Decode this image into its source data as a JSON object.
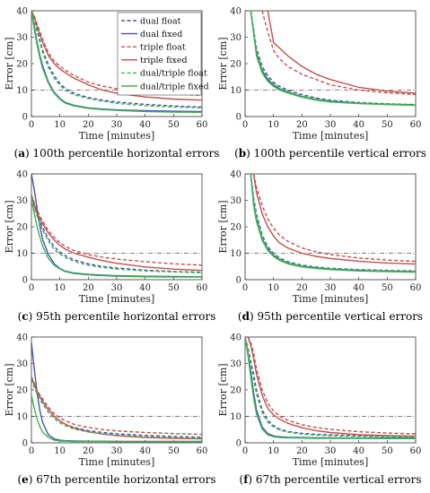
{
  "figure": {
    "legend_placement": "top-right inside panel a",
    "styles": {
      "dual float": {
        "color": "#4a4fb8",
        "dash": true
      },
      "dual fixed": {
        "color": "#4a4fb8",
        "dash": false
      },
      "triple float": {
        "color": "#c0504d",
        "dash": true
      },
      "triple fixed": {
        "color": "#c0504d",
        "dash": false
      },
      "dual/triple float": {
        "color": "#3cb44b",
        "dash": true
      },
      "dual/triple fixed": {
        "color": "#3cb44b",
        "dash": false
      }
    },
    "reference_line_color": "#555555"
  },
  "chart_data": [
    {
      "type": "line",
      "panel_letter": "a",
      "caption_text": "100th percentile horizontal errors",
      "xlabel": "Time [minutes]",
      "ylabel": "Error [cm]",
      "xlim": [
        0,
        60
      ],
      "ylim": [
        0,
        40
      ],
      "xticks": [
        0,
        10,
        20,
        30,
        40,
        50,
        60
      ],
      "yticks": [
        0,
        10,
        20,
        30,
        40
      ],
      "reference_line": 10,
      "x": [
        0,
        1,
        2,
        3,
        4,
        6,
        8,
        10,
        12,
        15,
        20,
        25,
        30,
        40,
        50,
        60
      ],
      "series": [
        {
          "name": "dual float",
          "values": [
            40,
            37,
            33,
            29,
            25,
            19.5,
            15.5,
            12.5,
            10.5,
            8.8,
            7.2,
            6.2,
            5.5,
            4.6,
            4.0,
            3.6
          ]
        },
        {
          "name": "dual fixed",
          "values": [
            40,
            34,
            28,
            23,
            19,
            13,
            9.2,
            6.8,
            5.3,
            4.2,
            3.3,
            2.8,
            2.5,
            2.2,
            2.0,
            1.9
          ]
        },
        {
          "name": "triple float",
          "values": [
            40,
            38,
            35,
            32,
            29,
            24,
            21,
            19,
            17.5,
            15.5,
            13,
            11.5,
            10.5,
            9.3,
            8.5,
            8.0
          ]
        },
        {
          "name": "triple fixed",
          "values": [
            40,
            37.5,
            34,
            31,
            28,
            23,
            20,
            18,
            16.5,
            14.5,
            12,
            10,
            8.8,
            7.4,
            6.6,
            6.2
          ]
        },
        {
          "name": "dual/triple float",
          "values": [
            40,
            36,
            32,
            28,
            24,
            18.5,
            14.5,
            11.8,
            9.8,
            8.2,
            6.8,
            5.8,
            5.0,
            4.1,
            3.6,
            3.3
          ]
        },
        {
          "name": "dual/triple fixed",
          "values": [
            40,
            33,
            27,
            22,
            18,
            12.5,
            8.8,
            6.5,
            5.0,
            4.0,
            3.1,
            2.6,
            2.3,
            1.9,
            1.7,
            1.6
          ]
        }
      ]
    },
    {
      "type": "line",
      "panel_letter": "b",
      "caption_text": "100th percentile vertical errors",
      "xlabel": "Time [minutes]",
      "ylabel": "Error [cm]",
      "xlim": [
        0,
        60
      ],
      "ylim": [
        0,
        40
      ],
      "xticks": [
        0,
        10,
        20,
        30,
        40,
        50,
        60
      ],
      "yticks": [
        0,
        10,
        20,
        30,
        40
      ],
      "reference_line": 10,
      "x": [
        0,
        2,
        4,
        6,
        8,
        10,
        12,
        15,
        20,
        25,
        30,
        40,
        50,
        60
      ],
      "series": [
        {
          "name": "dual float",
          "values": [
            null,
            40,
            26,
            19,
            15.5,
            13,
            11.5,
            10,
            8.3,
            7.0,
            6.2,
            5.3,
            4.8,
            4.5
          ]
        },
        {
          "name": "dual fixed",
          "values": [
            null,
            40,
            24,
            17.5,
            14,
            12,
            10.5,
            9.2,
            7.5,
            6.4,
            5.7,
            5.0,
            4.6,
            4.3
          ]
        },
        {
          "name": "triple float",
          "values": [
            null,
            null,
            null,
            40,
            32,
            25,
            22,
            19,
            16,
            14,
            12,
            10,
            9.0,
            8.3
          ]
        },
        {
          "name": "triple fixed",
          "values": [
            null,
            null,
            null,
            null,
            40,
            28,
            26,
            23,
            19,
            16,
            14,
            11,
            9.6,
            8.8
          ]
        },
        {
          "name": "dual/triple float",
          "values": [
            null,
            40,
            25,
            18,
            14.5,
            12.3,
            10.8,
            9.5,
            7.8,
            6.6,
            5.9,
            5.1,
            4.7,
            4.4
          ]
        },
        {
          "name": "dual/triple fixed",
          "values": [
            null,
            40,
            23,
            16.5,
            13.3,
            11.4,
            10.1,
            8.9,
            7.3,
            6.2,
            5.5,
            4.9,
            4.5,
            4.2
          ]
        }
      ]
    },
    {
      "type": "line",
      "panel_letter": "c",
      "caption_text": "95th percentile horizontal errors",
      "xlabel": "Time [minutes]",
      "ylabel": "Error [cm]",
      "xlim": [
        0,
        60
      ],
      "ylim": [
        0,
        40
      ],
      "xticks": [
        0,
        10,
        20,
        30,
        40,
        50,
        60
      ],
      "yticks": [
        0,
        10,
        20,
        30,
        40
      ],
      "reference_line": 10,
      "x": [
        0,
        1,
        2,
        3,
        4,
        6,
        8,
        10,
        12,
        15,
        20,
        25,
        30,
        40,
        50,
        60
      ],
      "series": [
        {
          "name": "dual float",
          "values": [
            32,
            28,
            25,
            22,
            19.5,
            15.5,
            12.5,
            10.5,
            9.0,
            7.5,
            6.0,
            5.0,
            4.4,
            3.6,
            3.1,
            2.8
          ]
        },
        {
          "name": "dual fixed",
          "values": [
            40,
            34,
            27,
            20,
            15,
            9.5,
            6.0,
            4.2,
            3.2,
            2.5,
            2.0,
            1.7,
            1.5,
            1.3,
            1.2,
            1.1
          ]
        },
        {
          "name": "triple float",
          "values": [
            32,
            29,
            26.5,
            24,
            22,
            18.5,
            16,
            14,
            12.5,
            11,
            9.5,
            8.5,
            7.8,
            6.8,
            6.0,
            5.5
          ]
        },
        {
          "name": "triple fixed",
          "values": [
            32,
            28.5,
            25.5,
            23,
            21,
            17.5,
            15,
            13,
            11.5,
            10,
            8.5,
            7.2,
            6.2,
            4.8,
            4.0,
            3.5
          ]
        },
        {
          "name": "dual/triple float",
          "values": [
            31,
            27,
            24,
            21,
            18.5,
            14.5,
            11.5,
            9.7,
            8.3,
            6.9,
            5.5,
            4.6,
            4.0,
            3.3,
            2.9,
            2.6
          ]
        },
        {
          "name": "dual/triple fixed",
          "values": [
            30,
            25,
            20,
            16,
            12.5,
            8.0,
            5.5,
            4.0,
            3.0,
            2.3,
            1.8,
            1.5,
            1.3,
            1.1,
            1.0,
            1.0
          ]
        }
      ]
    },
    {
      "type": "line",
      "panel_letter": "d",
      "caption_text": "95th percentile vertical errors",
      "xlabel": "Time [minutes]",
      "ylabel": "Error [cm]",
      "xlim": [
        0,
        60
      ],
      "ylim": [
        0,
        40
      ],
      "xticks": [
        0,
        10,
        20,
        30,
        40,
        50,
        60
      ],
      "yticks": [
        0,
        10,
        20,
        30,
        40
      ],
      "reference_line": 10,
      "x": [
        0,
        2,
        3,
        4,
        6,
        8,
        10,
        12,
        15,
        20,
        25,
        30,
        40,
        50,
        60
      ],
      "series": [
        {
          "name": "dual float",
          "values": [
            null,
            40,
            31,
            25,
            17,
            12.5,
            10,
            8.3,
            6.8,
            5.5,
            4.8,
            4.3,
            3.8,
            3.5,
            3.3
          ]
        },
        {
          "name": "dual fixed",
          "values": [
            null,
            40,
            29,
            23,
            15.5,
            11.5,
            9.2,
            7.7,
            6.2,
            5.0,
            4.4,
            4.0,
            3.5,
            3.2,
            3.0
          ]
        },
        {
          "name": "triple float",
          "values": [
            null,
            null,
            40,
            35,
            28,
            23,
            19.5,
            17,
            14.5,
            12,
            10.5,
            9.5,
            8.2,
            7.4,
            6.9
          ]
        },
        {
          "name": "triple fixed",
          "values": [
            null,
            null,
            40,
            33,
            25,
            20,
            16.5,
            14,
            12,
            10,
            8.8,
            8.0,
            7.0,
            6.3,
            5.9
          ]
        },
        {
          "name": "dual/triple float",
          "values": [
            null,
            40,
            30,
            24,
            16.5,
            12,
            9.6,
            8.0,
            6.5,
            5.3,
            4.6,
            4.1,
            3.6,
            3.3,
            3.1
          ]
        },
        {
          "name": "dual/triple fixed",
          "values": [
            null,
            40,
            28,
            22,
            15,
            11,
            8.8,
            7.4,
            6.0,
            4.8,
            4.2,
            3.8,
            3.3,
            3.0,
            2.8
          ]
        }
      ]
    },
    {
      "type": "line",
      "panel_letter": "e",
      "caption_text": "67th percentile horizontal errors",
      "xlabel": "Time [minutes]",
      "ylabel": "Error [cm]",
      "xlim": [
        0,
        60
      ],
      "ylim": [
        0,
        40
      ],
      "xticks": [
        0,
        10,
        20,
        30,
        40,
        50,
        60
      ],
      "yticks": [
        0,
        10,
        20,
        30,
        40
      ],
      "reference_line": 10,
      "x": [
        0,
        1,
        2,
        3,
        4,
        6,
        8,
        10,
        12,
        15,
        20,
        25,
        30,
        40,
        50,
        60
      ],
      "series": [
        {
          "name": "dual float",
          "values": [
            25,
            22,
            19.5,
            17.5,
            15.5,
            12.5,
            10,
            8.3,
            7.0,
            5.8,
            4.6,
            3.9,
            3.4,
            2.8,
            2.4,
            2.1
          ]
        },
        {
          "name": "dual fixed",
          "values": [
            38,
            28,
            19,
            12,
            7.5,
            3.0,
            1.5,
            1.0,
            0.8,
            0.7,
            0.6,
            0.6,
            0.5,
            0.5,
            0.5,
            0.5
          ]
        },
        {
          "name": "triple float",
          "values": [
            25,
            22.5,
            20,
            18,
            16.5,
            13.5,
            11,
            9.5,
            8.3,
            7.0,
            5.8,
            5.0,
            4.5,
            3.9,
            3.5,
            3.2
          ]
        },
        {
          "name": "triple fixed",
          "values": [
            25,
            22,
            19.5,
            17.5,
            15.5,
            12.5,
            10,
            8.3,
            7.0,
            5.6,
            4.2,
            3.3,
            2.7,
            2.0,
            1.7,
            1.5
          ]
        },
        {
          "name": "dual/triple float",
          "values": [
            24,
            21,
            18.5,
            16.5,
            14.5,
            11.5,
            9.2,
            7.6,
            6.4,
            5.2,
            4.1,
            3.4,
            2.9,
            2.3,
            2.0,
            1.8
          ]
        },
        {
          "name": "dual/triple fixed",
          "values": [
            18,
            13,
            9,
            6,
            4,
            2.0,
            1.0,
            0.7,
            0.6,
            0.5,
            0.5,
            0.5,
            0.4,
            0.4,
            0.4,
            0.4
          ]
        }
      ]
    },
    {
      "type": "line",
      "panel_letter": "f",
      "caption_text": "67th percentile vertical errors",
      "xlabel": "Time [minutes]",
      "ylabel": "Error [cm]",
      "xlim": [
        0,
        60
      ],
      "ylim": [
        0,
        40
      ],
      "xticks": [
        0,
        10,
        20,
        30,
        40,
        50,
        60
      ],
      "yticks": [
        0,
        10,
        20,
        30,
        40
      ],
      "reference_line": 10,
      "x": [
        0,
        1,
        2,
        3,
        4,
        6,
        8,
        10,
        12,
        15,
        20,
        25,
        30,
        40,
        50,
        60
      ],
      "series": [
        {
          "name": "dual float",
          "values": [
            40,
            36,
            31,
            26,
            20,
            12.5,
            8.5,
            6.5,
            5.3,
            4.3,
            3.6,
            3.2,
            3.0,
            2.7,
            2.5,
            2.4
          ]
        },
        {
          "name": "dual fixed",
          "values": [
            40,
            34,
            27,
            19,
            12.5,
            6.0,
            3.5,
            2.6,
            2.3,
            2.1,
            2.0,
            1.9,
            1.9,
            1.8,
            1.8,
            1.8
          ]
        },
        {
          "name": "triple float",
          "values": [
            null,
            40,
            38,
            34,
            28,
            20,
            15,
            12,
            10.2,
            8.5,
            6.8,
            5.8,
            5.1,
            4.2,
            3.7,
            3.4
          ]
        },
        {
          "name": "triple fixed",
          "values": [
            null,
            40,
            37,
            32,
            26,
            18,
            13,
            10.5,
            9.0,
            7.4,
            5.7,
            4.6,
            3.9,
            3.1,
            2.7,
            2.5
          ]
        },
        {
          "name": "dual/triple float",
          "values": [
            40,
            35,
            30,
            24,
            18.5,
            11.5,
            7.8,
            6.0,
            4.9,
            4.0,
            3.3,
            2.9,
            2.7,
            2.4,
            2.3,
            2.2
          ]
        },
        {
          "name": "dual/triple fixed",
          "values": [
            40,
            33,
            25,
            17,
            11,
            5.2,
            3.0,
            2.3,
            2.0,
            1.9,
            1.8,
            1.7,
            1.7,
            1.7,
            1.6,
            1.6
          ]
        }
      ]
    }
  ]
}
